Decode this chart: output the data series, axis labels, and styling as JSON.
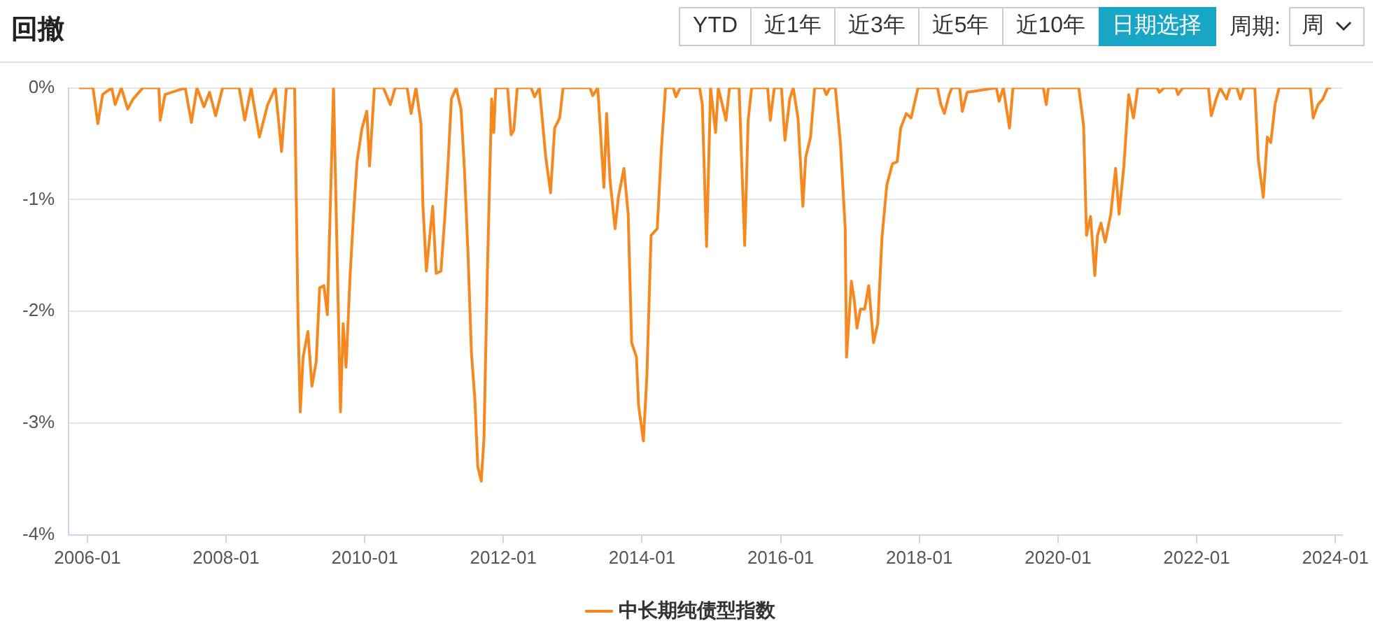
{
  "chart_data": {
    "type": "line",
    "title": "回撤",
    "legend": "bottom",
    "grid": "y",
    "marker": "none",
    "line_style": "solid",
    "annotations": [
      "YTD",
      "近1年",
      "近3年",
      "近5年",
      "近10年",
      "日期选择",
      "周期:",
      "周"
    ],
    "xlim": [
      "2005-09-24",
      "2024-02-07"
    ],
    "xticks": [
      "2006-01",
      "2008-01",
      "2010-01",
      "2012-01",
      "2014-01",
      "2016-01",
      "2018-01",
      "2020-01",
      "2022-01",
      "2024-01"
    ],
    "ylim": [
      -4,
      0
    ],
    "yticks": [
      {
        "value": 0,
        "label": "0%"
      },
      {
        "value": -1,
        "label": "-1%"
      },
      {
        "value": -2,
        "label": "-2%"
      },
      {
        "value": -3,
        "label": "-3%"
      },
      {
        "value": -4,
        "label": "-4%"
      }
    ],
    "series": [
      {
        "name": "中长期纯债型指数",
        "color": "#f5891f",
        "x": [
          "2005-11-18",
          "2006-01-30",
          "2006-02-25",
          "2006-03-20",
          "2006-05-07",
          "2006-05-25",
          "2006-06-27",
          "2006-07-30",
          "2006-08-28",
          "2006-10-19",
          "2007-01-12",
          "2007-01-19",
          "2007-02-14",
          "2007-05-29",
          "2007-07-01",
          "2007-07-30",
          "2007-09-06",
          "2007-10-05",
          "2007-11-07",
          "2007-12-13",
          "2008-03-09",
          "2008-04-08",
          "2008-05-11",
          "2008-06-24",
          "2008-08-07",
          "2008-09-17",
          "2008-10-19",
          "2008-11-14",
          "2008-12-27",
          "2009-01-15",
          "2009-01-26",
          "2009-02-11",
          "2009-03-06",
          "2009-03-27",
          "2009-04-19",
          "2009-05-07",
          "2009-05-29",
          "2009-06-17",
          "2009-07-19",
          "2009-08-25",
          "2009-09-09",
          "2009-09-24",
          "2009-10-15",
          "2009-11-03",
          "2009-11-21",
          "2009-12-17",
          "2010-01-12",
          "2010-01-26",
          "2010-02-21",
          "2010-04-08",
          "2010-05-14",
          "2010-06-09",
          "2010-08-11",
          "2010-09-02",
          "2010-09-27",
          "2010-10-23",
          "2010-11-03",
          "2010-11-21",
          "2010-12-24",
          "2011-01-12",
          "2011-02-07",
          "2011-02-28",
          "2011-03-13",
          "2011-04-01",
          "2011-04-26",
          "2011-05-21",
          "2011-06-09",
          "2011-06-27",
          "2011-07-15",
          "2011-08-03",
          "2011-08-18",
          "2011-09-06",
          "2011-09-20",
          "2011-10-08",
          "2011-10-30",
          "2011-11-11",
          "2011-11-21",
          "2012-01-23",
          "2012-02-11",
          "2012-02-25",
          "2012-03-13",
          "2012-05-25",
          "2012-06-13",
          "2012-07-08",
          "2012-08-11",
          "2012-09-06",
          "2012-09-27",
          "2012-10-23",
          "2012-11-11",
          "2013-04-01",
          "2013-04-15",
          "2013-05-11",
          "2013-06-13",
          "2013-06-27",
          "2013-07-15",
          "2013-08-11",
          "2013-08-28",
          "2013-09-27",
          "2013-10-19",
          "2013-11-07",
          "2013-12-02",
          "2013-12-13",
          "2014-01-08",
          "2014-01-26",
          "2014-02-18",
          "2014-03-20",
          "2014-04-12",
          "2014-05-03",
          "2014-06-13",
          "2014-06-27",
          "2014-07-19",
          "2014-10-30",
          "2014-11-14",
          "2014-12-06",
          "2014-12-27",
          "2015-01-23",
          "2015-02-07",
          "2015-03-17",
          "2015-04-05",
          "2015-05-25",
          "2015-06-24",
          "2015-07-12",
          "2015-07-30",
          "2015-10-23",
          "2015-11-07",
          "2015-11-28",
          "2016-01-05",
          "2016-01-23",
          "2016-02-18",
          "2016-03-06",
          "2016-04-01",
          "2016-04-26",
          "2016-05-11",
          "2016-06-06",
          "2016-06-27",
          "2016-08-14",
          "2016-08-28",
          "2016-09-17",
          "2016-10-15",
          "2016-11-11",
          "2016-12-06",
          "2016-12-13",
          "2017-01-08",
          "2017-01-23",
          "2017-02-07",
          "2017-02-25",
          "2017-03-17",
          "2017-04-08",
          "2017-05-03",
          "2017-05-25",
          "2017-06-17",
          "2017-07-12",
          "2017-08-11",
          "2017-09-06",
          "2017-09-24",
          "2017-10-23",
          "2017-11-18",
          "2017-12-24",
          "2018-04-05",
          "2018-04-23",
          "2018-05-11",
          "2018-06-06",
          "2018-06-20",
          "2018-07-30",
          "2018-08-14",
          "2018-09-09",
          "2019-02-11",
          "2019-02-25",
          "2019-03-17",
          "2019-04-19",
          "2019-05-07",
          "2019-10-15",
          "2019-10-30",
          "2019-11-11",
          "2020-04-19",
          "2020-05-14",
          "2020-05-29",
          "2020-06-20",
          "2020-07-12",
          "2020-07-26",
          "2020-08-14",
          "2020-09-06",
          "2020-10-05",
          "2020-10-30",
          "2020-11-18",
          "2020-12-13",
          "2021-01-08",
          "2021-02-03",
          "2021-02-25",
          "2021-06-06",
          "2021-06-17",
          "2021-07-12",
          "2021-09-13",
          "2021-09-24",
          "2021-10-19",
          "2022-03-02",
          "2022-03-17",
          "2022-04-12",
          "2022-05-03",
          "2022-06-06",
          "2022-06-24",
          "2022-07-30",
          "2022-08-18",
          "2022-09-06",
          "2022-11-03",
          "2022-11-21",
          "2022-12-17",
          "2023-01-08",
          "2023-01-26",
          "2023-02-18",
          "2023-03-09",
          "2023-08-21",
          "2023-09-06",
          "2023-10-01",
          "2023-10-26",
          "2023-11-21",
          "2023-12-09"
        ],
        "values": [
          0,
          0,
          -0.32,
          -0.06,
          0,
          -0.15,
          0,
          -0.19,
          -0.1,
          0,
          0,
          -0.29,
          -0.06,
          0,
          -0.31,
          0,
          -0.17,
          -0.04,
          -0.25,
          0,
          0,
          -0.29,
          0,
          -0.44,
          -0.15,
          0,
          -0.57,
          0,
          0,
          -2.11,
          -2.9,
          -2.41,
          -2.18,
          -2.67,
          -2.45,
          -1.79,
          -1.77,
          -2.03,
          0,
          -2.9,
          -2.11,
          -2.5,
          -1.68,
          -1.13,
          -0.66,
          -0.36,
          -0.21,
          -0.7,
          0,
          0,
          -0.15,
          0,
          0,
          -0.23,
          0,
          -0.32,
          -1.04,
          -1.64,
          -1.06,
          -1.66,
          -1.64,
          -1.13,
          -0.7,
          -0.1,
          0,
          -0.19,
          -0.74,
          -1.47,
          -2.37,
          -2.79,
          -3.39,
          -3.52,
          -3.14,
          -1.64,
          -0.1,
          -0.4,
          0,
          0,
          -0.42,
          -0.38,
          0,
          0,
          -0.08,
          0,
          -0.62,
          -0.94,
          -0.36,
          -0.27,
          0,
          0,
          -0.07,
          0,
          -0.89,
          -0.23,
          -0.83,
          -1.26,
          -0.98,
          -0.72,
          -1.13,
          -2.28,
          -2.41,
          -2.84,
          -3.16,
          -2.58,
          -1.32,
          -1.26,
          -0.53,
          0,
          0,
          -0.08,
          0,
          0,
          -0.15,
          -1.42,
          0,
          -0.4,
          0,
          -0.29,
          0,
          0,
          -1.41,
          -0.29,
          0,
          0,
          -0.29,
          0,
          0,
          -0.47,
          -0.1,
          0,
          -0.27,
          -1.06,
          -0.62,
          -0.44,
          0,
          0,
          -0.06,
          0,
          0,
          -0.49,
          -1.26,
          -2.41,
          -1.73,
          -1.9,
          -2.15,
          -1.98,
          -1.98,
          -1.77,
          -2.28,
          -2.11,
          -1.34,
          -0.87,
          -0.68,
          -0.66,
          -0.36,
          -0.23,
          -0.27,
          0,
          0,
          -0.15,
          -0.23,
          -0.06,
          0,
          0,
          -0.21,
          -0.04,
          0,
          -0.12,
          0,
          -0.36,
          0,
          0,
          -0.15,
          0,
          0,
          -0.34,
          -1.32,
          -1.15,
          -1.68,
          -1.32,
          -1.21,
          -1.38,
          -1.13,
          -0.72,
          -1.13,
          -0.7,
          -0.06,
          -0.27,
          0,
          0,
          -0.04,
          0,
          0,
          -0.06,
          0,
          0,
          -0.25,
          -0.1,
          0,
          -0.1,
          0,
          0,
          -0.1,
          0,
          0,
          -0.64,
          -0.98,
          -0.44,
          -0.49,
          -0.15,
          0,
          0,
          -0.27,
          -0.15,
          -0.1,
          0,
          0
        ]
      }
    ]
  }
}
